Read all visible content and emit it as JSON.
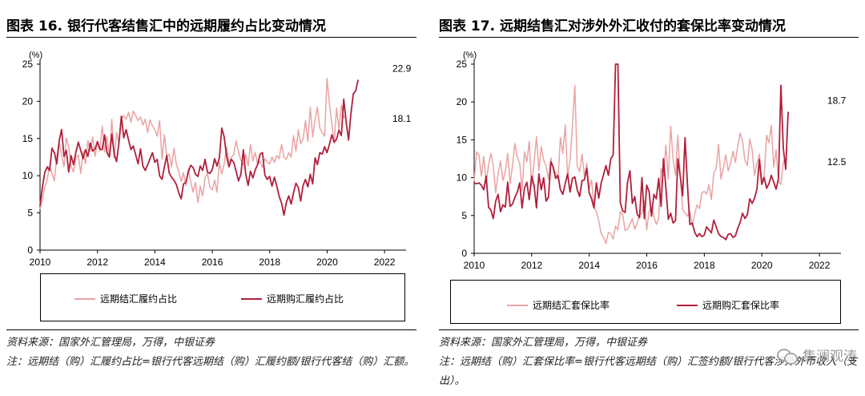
{
  "left": {
    "title": "图表 16. 银行代客结售汇中的远期履约占比变动情况",
    "source": "资料来源：国家外汇管理局，万得，中银证券",
    "note": "注：远期结（购）汇履约占比=银行代客远期结（购）汇履约额/银行代客结（购）汇额。"
  },
  "right": {
    "title": "图表 17. 远期结售汇对涉外外汇收付的套保比率变动情况",
    "source": "资料来源：国家外汇管理局，万得，中银证券",
    "note": "注：远期结（购）汇套保比率=银行代客远期结（购）汇签约额/银行代客涉外外币收入（支出）。",
    "watermark": "集澜观涛"
  },
  "chart_data": [
    {
      "type": "line",
      "ylabel": "(%)",
      "ylim": [
        0,
        25
      ],
      "yticks": [
        0,
        5,
        10,
        15,
        20,
        25
      ],
      "xlim": [
        2010,
        2022.75
      ],
      "xticks": [
        2010,
        2012,
        2014,
        2016,
        2018,
        2020,
        2022
      ],
      "annotations": [
        {
          "text": "22.9",
          "x": 2022.6,
          "y": 22.9,
          "series": 1
        },
        {
          "text": "18.1",
          "x": 2022.6,
          "y": 18.1,
          "series": 0
        }
      ],
      "legend_position": "bottom",
      "series": [
        {
          "name": "远期结汇履约占比",
          "color": "#eba3a3",
          "x_start": 2010.0,
          "x_step": 0.0833,
          "values": [
            5.5,
            6.8,
            8.5,
            9.5,
            11.3,
            10.3,
            9.3,
            12.6,
            14.5,
            12.8,
            11.2,
            15.1,
            13.8,
            11.3,
            10.5,
            12.4,
            12.8,
            10.3,
            13.3,
            11.6,
            14.7,
            13.3,
            15.2,
            12.6,
            14.5,
            13.3,
            16.7,
            13.2,
            15.3,
            12.5,
            17.6,
            12.4,
            15.8,
            14.3,
            17.5,
            18.1,
            17.6,
            18.5,
            17.2,
            18.7,
            18.1,
            17.4,
            17.9,
            16.8,
            17.6,
            15.8,
            17.5,
            16.7,
            16.2,
            15.3,
            17.4,
            12.2,
            15.5,
            12.6,
            12.9,
            11.2,
            13.7,
            11.5,
            10.6,
            9.2,
            10.4,
            8.7,
            10.9,
            9.2,
            7.8,
            9.1,
            6.4,
            8.6,
            7.3,
            9.7,
            10.3,
            8.5,
            8.1,
            9.4,
            7.8,
            11.8,
            10.2,
            11.6,
            13.9,
            11.8,
            12.5,
            12.8,
            14.7,
            13.2,
            12.1,
            11.4,
            12.9,
            11.3,
            14.2,
            12.0,
            13.1,
            11.5,
            11.9,
            11.1,
            12.3,
            11.8,
            11.6,
            12.5,
            11.8,
            12.7,
            12.3,
            14.2,
            12.5,
            12.2,
            13.1,
            12.5,
            15.4,
            13.3,
            16.2,
            14.3,
            14.9,
            17.4,
            14.6,
            19.2,
            15.2,
            17.6,
            19.2,
            16.4,
            15.8,
            15.3,
            23.1,
            19.7,
            17.0,
            14.4,
            19.1,
            16.2,
            19.5,
            17.8,
            18.1
          ]
        },
        {
          "name": "远期购汇履约占比",
          "color": "#b01f3c",
          "x_start": 2010.0,
          "x_step": 0.0833,
          "values": [
            6.0,
            8.5,
            10.5,
            11.2,
            10.7,
            13.7,
            13.1,
            11.6,
            14.7,
            16.2,
            12.6,
            13.4,
            10.5,
            12.7,
            11.5,
            13.2,
            14.5,
            13.4,
            12.3,
            13.5,
            12.6,
            14.4,
            13.3,
            13.6,
            14.6,
            13.6,
            13.5,
            15.5,
            13.1,
            12.5,
            15.6,
            12.9,
            11.9,
            14.4,
            18.0,
            15.1,
            16.2,
            14.8,
            13.5,
            14.0,
            12.8,
            11.6,
            13.6,
            11.3,
            10.7,
            11.5,
            12.3,
            13.1,
            11.8,
            12.2,
            10.0,
            9.5,
            11.2,
            12.7,
            10.4,
            9.8,
            9.4,
            8.8,
            7.7,
            6.9,
            8.9,
            9.1,
            10.5,
            11.4,
            11.1,
            10.2,
            9.9,
            11.3,
            10.7,
            12.2,
            10.5,
            10.3,
            10.8,
            12.3,
            11.3,
            12.4,
            16.4,
            15.2,
            12.6,
            11.2,
            12.2,
            11.8,
            10.6,
            9.3,
            10.2,
            13.5,
            10.2,
            8.7,
            10.6,
            9.7,
            10.8,
            11.5,
            12.9,
            13.1,
            10.1,
            9.5,
            9.9,
            8.6,
            9.8,
            8.6,
            7.2,
            6.3,
            4.7,
            6.4,
            7.3,
            6.2,
            7.7,
            9.0,
            8.4,
            6.6,
            8.7,
            9.5,
            8.5,
            10.2,
            8.9,
            12.4,
            11.5,
            13.1,
            12.9,
            13.9,
            13.1,
            14.2,
            15.5,
            14.5,
            14.9,
            16.1,
            15.4,
            20.3,
            17.2,
            14.8,
            18.3,
            21.0,
            21.4,
            22.9
          ]
        }
      ]
    },
    {
      "type": "line",
      "ylabel": "(%)",
      "ylim": [
        0,
        25
      ],
      "yticks": [
        0,
        5,
        10,
        15,
        20,
        25
      ],
      "xlim": [
        2010,
        2022.75
      ],
      "xticks": [
        2010,
        2012,
        2014,
        2016,
        2018,
        2020,
        2022
      ],
      "annotations": [
        {
          "text": "18.7",
          "x": 2022.6,
          "y": 18.7,
          "series": 1
        },
        {
          "text": "12.5",
          "x": 2022.6,
          "y": 12.5,
          "series": 0
        }
      ],
      "legend_position": "bottom",
      "series": [
        {
          "name": "远期结汇套保比率",
          "color": "#eba3a3",
          "x_start": 2010.0,
          "x_step": 0.0833,
          "values": [
            9.5,
            13.4,
            13.0,
            10.2,
            12.8,
            9.3,
            11.7,
            13.2,
            11.5,
            8.0,
            10.5,
            12.2,
            9.6,
            10.8,
            13.2,
            9.2,
            11.6,
            14.5,
            12.7,
            11.9,
            8.3,
            13.4,
            12.1,
            14.8,
            8.8,
            12.0,
            15.4,
            10.9,
            14.1,
            12.3,
            11.5,
            9.8,
            12.6,
            11.1,
            10.7,
            9.8,
            15.3,
            13.2,
            17.0,
            10.1,
            12.3,
            16.8,
            22.2,
            11.5,
            10.8,
            13.1,
            10.2,
            11.9,
            8.5,
            9.7,
            6.1,
            5.5,
            4.3,
            2.6,
            2.1,
            1.3,
            2.8,
            2.6,
            1.9,
            3.6,
            3.1,
            5.5,
            5.1,
            3.0,
            3.2,
            3.8,
            4.6,
            3.2,
            4.0,
            5.1,
            5.3,
            6.9,
            3.1,
            5.5,
            6.2,
            4.9,
            3.8,
            4.6,
            11.2,
            10.2,
            14.3,
            9.8,
            16.8,
            12.5,
            10.3,
            15.6,
            10.4,
            5.8,
            5.3,
            4.9,
            5.6,
            3.7,
            5.2,
            6.4,
            5.9,
            8.0,
            8.2,
            7.8,
            9.1,
            7.1,
            10.6,
            11.2,
            14.4,
            9.8,
            11.3,
            13.0,
            10.9,
            11.9,
            13.5,
            12.0,
            14.2,
            15.9,
            14.8,
            12.3,
            11.6,
            15.1,
            13.7,
            10.3,
            11.9,
            13.1,
            9.7,
            10.2,
            15.6,
            14.6,
            16.9,
            11.4,
            13.7,
            9.5,
            9.1,
            12.1,
            12.5
          ]
        },
        {
          "name": "远期购汇套保比率",
          "color": "#b01f3c",
          "x_start": 2010.0,
          "x_step": 0.0833,
          "values": [
            9.3,
            9.2,
            9.3,
            9.0,
            8.4,
            10.2,
            6.1,
            5.7,
            4.6,
            6.9,
            7.8,
            5.5,
            6.4,
            6.1,
            9.4,
            6.2,
            6.5,
            7.4,
            8.1,
            9.3,
            6.0,
            8.6,
            9.4,
            7.1,
            10.2,
            9.0,
            6.0,
            10.5,
            8.4,
            10.0,
            6.9,
            7.4,
            12.1,
            11.4,
            9.9,
            10.3,
            8.4,
            7.8,
            9.2,
            10.5,
            8.1,
            9.9,
            10.1,
            8.4,
            7.5,
            9.6,
            9.7,
            11.2,
            8.0,
            7.2,
            6.0,
            9.3,
            7.3,
            9.3,
            10.4,
            11.6,
            10.3,
            12.5,
            13.0,
            25.0,
            25.0,
            6.7,
            5.6,
            5.4,
            9.4,
            10.9,
            6.6,
            7.5,
            5.2,
            4.7,
            10.0,
            4.6,
            9.0,
            8.2,
            4.9,
            7.8,
            7.2,
            9.9,
            6.2,
            12.5,
            8.6,
            4.5,
            5.3,
            4.0,
            4.3,
            12.5,
            10.2,
            7.6,
            15.3,
            9.1,
            3.8,
            4.0,
            2.8,
            2.2,
            2.6,
            2.2,
            2.4,
            3.5,
            3.1,
            2.7,
            4.4,
            3.5,
            2.6,
            2.2,
            2.1,
            1.8,
            2.5,
            2.6,
            2.1,
            2.3,
            3.3,
            4.1,
            5.3,
            4.6,
            5.1,
            7.2,
            6.6,
            7.3,
            8.5,
            12.4,
            9.1,
            10.0,
            8.6,
            9.2,
            10.3,
            9.4,
            8.5,
            9.9,
            22.2,
            13.9,
            11.1,
            18.7
          ]
        }
      ]
    }
  ]
}
